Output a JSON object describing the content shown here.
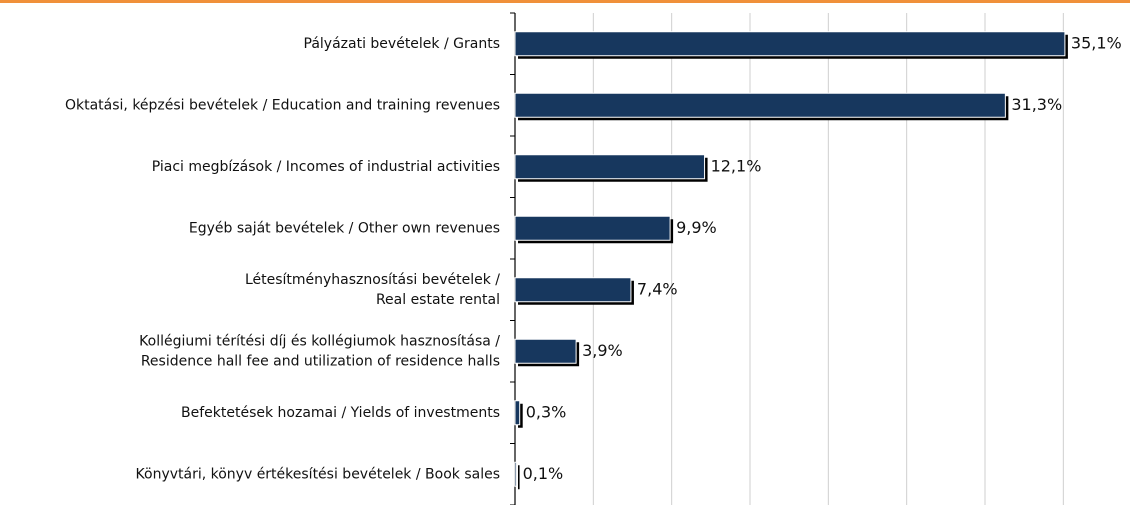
{
  "chart_data": {
    "type": "bar",
    "orientation": "horizontal",
    "categories": [
      [
        "Pályázati bevételek / Grants"
      ],
      [
        "Oktatási, képzési bevételek / Education and training revenues"
      ],
      [
        "Piaci megbízások / Incomes of industrial activities"
      ],
      [
        "Egyéb saját bevételek / Other own revenues"
      ],
      [
        "Létesítményhasznosítási bevételek /",
        "Real estate rental"
      ],
      [
        "Kollégiumi térítési díj és kollégiumok hasznosítása /",
        "Residence hall fee and utilization of residence halls"
      ],
      [
        "Befektetések hozamai / Yields of investments"
      ],
      [
        "Könyvtári, könyv értékesítési bevételek / Book sales"
      ]
    ],
    "values": [
      35.1,
      31.3,
      12.1,
      9.9,
      7.4,
      3.9,
      0.3,
      0.1
    ],
    "value_labels": [
      "35,1%",
      "31,3%",
      "12,1%",
      "9,9%",
      "7,4%",
      "3,9%",
      "0,3%",
      "0,1%"
    ],
    "color": "#17375e",
    "xlim": [
      0,
      39
    ],
    "xticks": [
      0,
      5,
      10,
      15,
      20,
      25,
      30,
      35
    ],
    "grid": true
  }
}
